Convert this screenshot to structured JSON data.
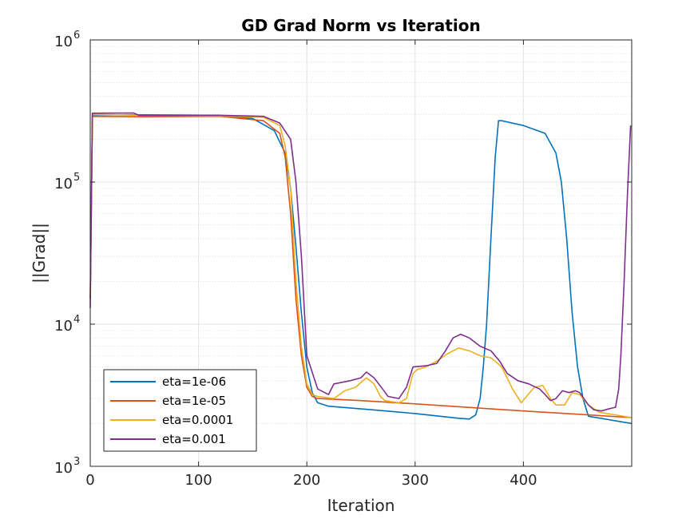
{
  "chart_data": {
    "type": "line",
    "title": "GD Grad Norm vs Iteration",
    "xlabel": "Iteration",
    "ylabel": "||Grad||",
    "xlim": [
      0,
      500
    ],
    "ylim": [
      1000,
      1000000
    ],
    "yscale": "log",
    "grid": true,
    "minor_grid": true,
    "legend_position": "bottom-left",
    "x_ticks": [
      0,
      100,
      200,
      300,
      400
    ],
    "y_ticks": [
      {
        "value": 1000,
        "base": "10",
        "exp": "3"
      },
      {
        "value": 10000,
        "base": "10",
        "exp": "4"
      },
      {
        "value": 100000,
        "base": "10",
        "exp": "5"
      },
      {
        "value": 1000000,
        "base": "10",
        "exp": "6"
      }
    ],
    "series": [
      {
        "name": "eta=1e-06",
        "color": "#0072BD",
        "points": [
          [
            0,
            15000
          ],
          [
            2,
            297000
          ],
          [
            50,
            297000
          ],
          [
            120,
            295000
          ],
          [
            150,
            280000
          ],
          [
            170,
            230000
          ],
          [
            180,
            160000
          ],
          [
            185,
            90000
          ],
          [
            190,
            35000
          ],
          [
            195,
            12000
          ],
          [
            200,
            5000
          ],
          [
            205,
            3300
          ],
          [
            210,
            2800
          ],
          [
            220,
            2650
          ],
          [
            260,
            2500
          ],
          [
            300,
            2350
          ],
          [
            340,
            2180
          ],
          [
            350,
            2150
          ],
          [
            356,
            2300
          ],
          [
            360,
            3000
          ],
          [
            363,
            5000
          ],
          [
            366,
            10000
          ],
          [
            370,
            40000
          ],
          [
            374,
            150000
          ],
          [
            377,
            270000
          ],
          [
            380,
            270000
          ],
          [
            400,
            250000
          ],
          [
            420,
            220000
          ],
          [
            430,
            160000
          ],
          [
            435,
            100000
          ],
          [
            440,
            40000
          ],
          [
            445,
            12000
          ],
          [
            450,
            5000
          ],
          [
            455,
            3000
          ],
          [
            460,
            2250
          ],
          [
            500,
            2000
          ]
        ]
      },
      {
        "name": "eta=1e-05",
        "color": "#D95319",
        "points": [
          [
            0,
            15000
          ],
          [
            2,
            290000
          ],
          [
            50,
            288000
          ],
          [
            120,
            290000
          ],
          [
            160,
            270000
          ],
          [
            175,
            220000
          ],
          [
            180,
            150000
          ],
          [
            185,
            60000
          ],
          [
            190,
            15000
          ],
          [
            195,
            6000
          ],
          [
            200,
            3600
          ],
          [
            205,
            3100
          ],
          [
            210,
            3000
          ],
          [
            250,
            2900
          ],
          [
            300,
            2750
          ],
          [
            400,
            2450
          ],
          [
            460,
            2300
          ],
          [
            500,
            2200
          ]
        ]
      },
      {
        "name": "eta=0.0001",
        "color": "#EDB120",
        "points": [
          [
            0,
            15000
          ],
          [
            2,
            300000
          ],
          [
            50,
            295000
          ],
          [
            120,
            292000
          ],
          [
            160,
            285000
          ],
          [
            175,
            250000
          ],
          [
            180,
            180000
          ],
          [
            185,
            90000
          ],
          [
            190,
            20000
          ],
          [
            195,
            7000
          ],
          [
            200,
            3800
          ],
          [
            205,
            3200
          ],
          [
            210,
            3100
          ],
          [
            225,
            3000
          ],
          [
            235,
            3400
          ],
          [
            245,
            3600
          ],
          [
            255,
            4200
          ],
          [
            262,
            3800
          ],
          [
            268,
            3100
          ],
          [
            272,
            2900
          ],
          [
            285,
            2800
          ],
          [
            292,
            3000
          ],
          [
            298,
            4500
          ],
          [
            302,
            4800
          ],
          [
            310,
            5000
          ],
          [
            320,
            5500
          ],
          [
            330,
            6200
          ],
          [
            340,
            6800
          ],
          [
            350,
            6500
          ],
          [
            360,
            6000
          ],
          [
            370,
            5800
          ],
          [
            380,
            5000
          ],
          [
            390,
            3500
          ],
          [
            398,
            2800
          ],
          [
            410,
            3600
          ],
          [
            418,
            3700
          ],
          [
            425,
            3000
          ],
          [
            430,
            2700
          ],
          [
            438,
            2700
          ],
          [
            445,
            3300
          ],
          [
            452,
            3200
          ],
          [
            460,
            2700
          ],
          [
            470,
            2400
          ],
          [
            500,
            2200
          ]
        ]
      },
      {
        "name": "eta=0.001",
        "color": "#7E2F8E",
        "points": [
          [
            0,
            13000
          ],
          [
            2,
            305000
          ],
          [
            40,
            306000
          ],
          [
            45,
            295000
          ],
          [
            120,
            295000
          ],
          [
            160,
            290000
          ],
          [
            175,
            260000
          ],
          [
            185,
            200000
          ],
          [
            190,
            100000
          ],
          [
            195,
            30000
          ],
          [
            200,
            6000
          ],
          [
            210,
            3500
          ],
          [
            220,
            3200
          ],
          [
            225,
            3800
          ],
          [
            240,
            4000
          ],
          [
            250,
            4200
          ],
          [
            255,
            4600
          ],
          [
            262,
            4200
          ],
          [
            270,
            3500
          ],
          [
            275,
            3100
          ],
          [
            285,
            3000
          ],
          [
            292,
            3600
          ],
          [
            298,
            5000
          ],
          [
            310,
            5100
          ],
          [
            320,
            5300
          ],
          [
            328,
            6500
          ],
          [
            335,
            8000
          ],
          [
            342,
            8500
          ],
          [
            350,
            8000
          ],
          [
            360,
            7000
          ],
          [
            370,
            6500
          ],
          [
            378,
            5500
          ],
          [
            385,
            4500
          ],
          [
            395,
            4000
          ],
          [
            405,
            3800
          ],
          [
            415,
            3500
          ],
          [
            420,
            3200
          ],
          [
            425,
            2900
          ],
          [
            430,
            3000
          ],
          [
            436,
            3400
          ],
          [
            442,
            3300
          ],
          [
            448,
            3400
          ],
          [
            452,
            3300
          ],
          [
            460,
            2700
          ],
          [
            465,
            2500
          ],
          [
            472,
            2450
          ],
          [
            480,
            2550
          ],
          [
            485,
            2600
          ],
          [
            488,
            3500
          ],
          [
            490,
            6000
          ],
          [
            493,
            20000
          ],
          [
            496,
            80000
          ],
          [
            499,
            250000
          ]
        ]
      }
    ]
  }
}
